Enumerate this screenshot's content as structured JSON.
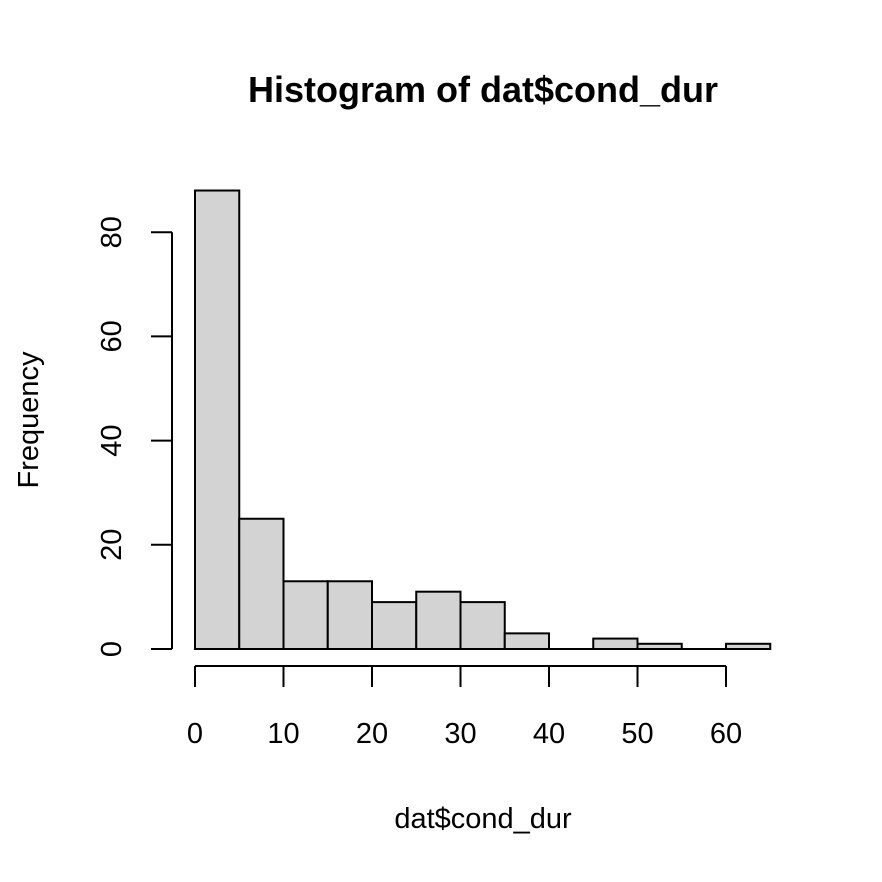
{
  "chart_data": {
    "type": "bar",
    "title": "Histogram of dat$cond_dur",
    "xlabel": "dat$cond_dur",
    "ylabel": "Frequency",
    "bin_edges": [
      0,
      5,
      10,
      15,
      20,
      25,
      30,
      35,
      40,
      45,
      50,
      55,
      60,
      65
    ],
    "values": [
      88,
      25,
      13,
      13,
      9,
      11,
      9,
      3,
      0,
      2,
      1,
      0,
      1
    ],
    "xlim": [
      0,
      65
    ],
    "ylim": [
      0,
      88
    ],
    "x_ticks": [
      0,
      10,
      20,
      30,
      40,
      50,
      60
    ],
    "y_ticks": [
      0,
      20,
      40,
      60,
      80
    ],
    "bar_fill": "#d3d3d3",
    "grid": false
  }
}
